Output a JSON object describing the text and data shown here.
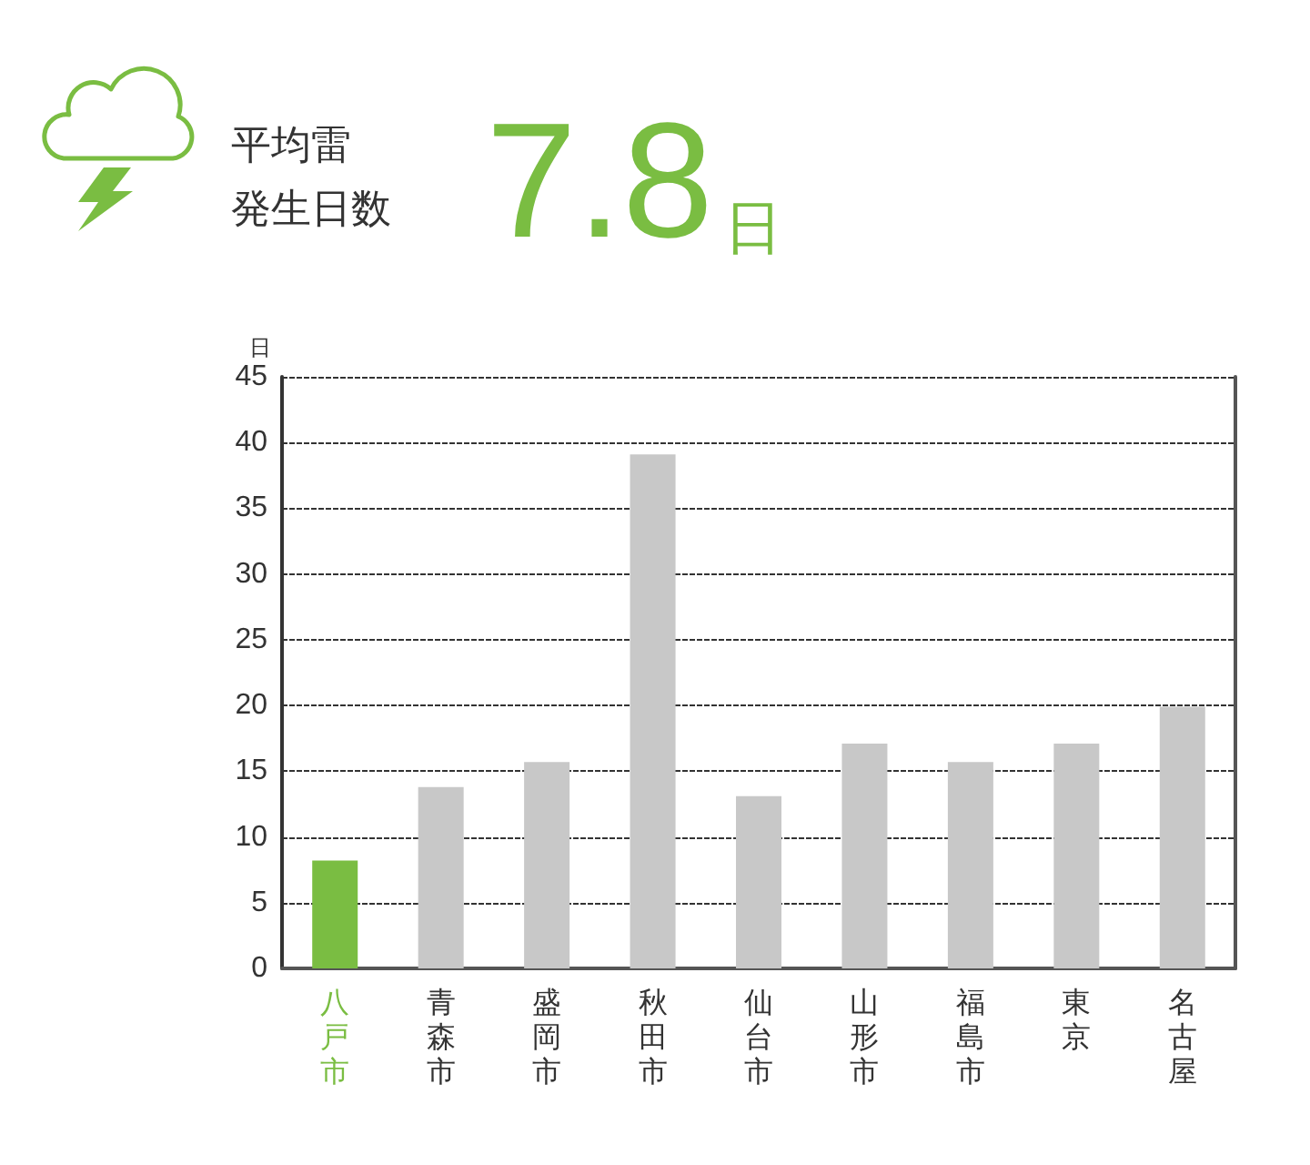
{
  "chart_data": {
    "type": "bar",
    "title": "平均雷発生日数",
    "subtitle": "7.8日",
    "ylabel": "日",
    "categories": [
      "八戸市",
      "青森市",
      "盛岡市",
      "秋田市",
      "仙台市",
      "山形市",
      "福島市",
      "東京",
      "名古屋"
    ],
    "values": [
      8.2,
      13.8,
      15.7,
      39.1,
      13.1,
      17.1,
      15.7,
      17.1,
      19.9
    ],
    "colors": [
      "#7abd42",
      "#c8c8c8",
      "#c8c8c8",
      "#c8c8c8",
      "#c8c8c8",
      "#c8c8c8",
      "#c8c8c8",
      "#c8c8c8",
      "#c8c8c8"
    ],
    "ylim": [
      0,
      45
    ],
    "yticks": [
      0,
      5,
      10,
      15,
      20,
      25,
      30,
      35,
      40,
      45
    ],
    "grid": "y"
  }
}
